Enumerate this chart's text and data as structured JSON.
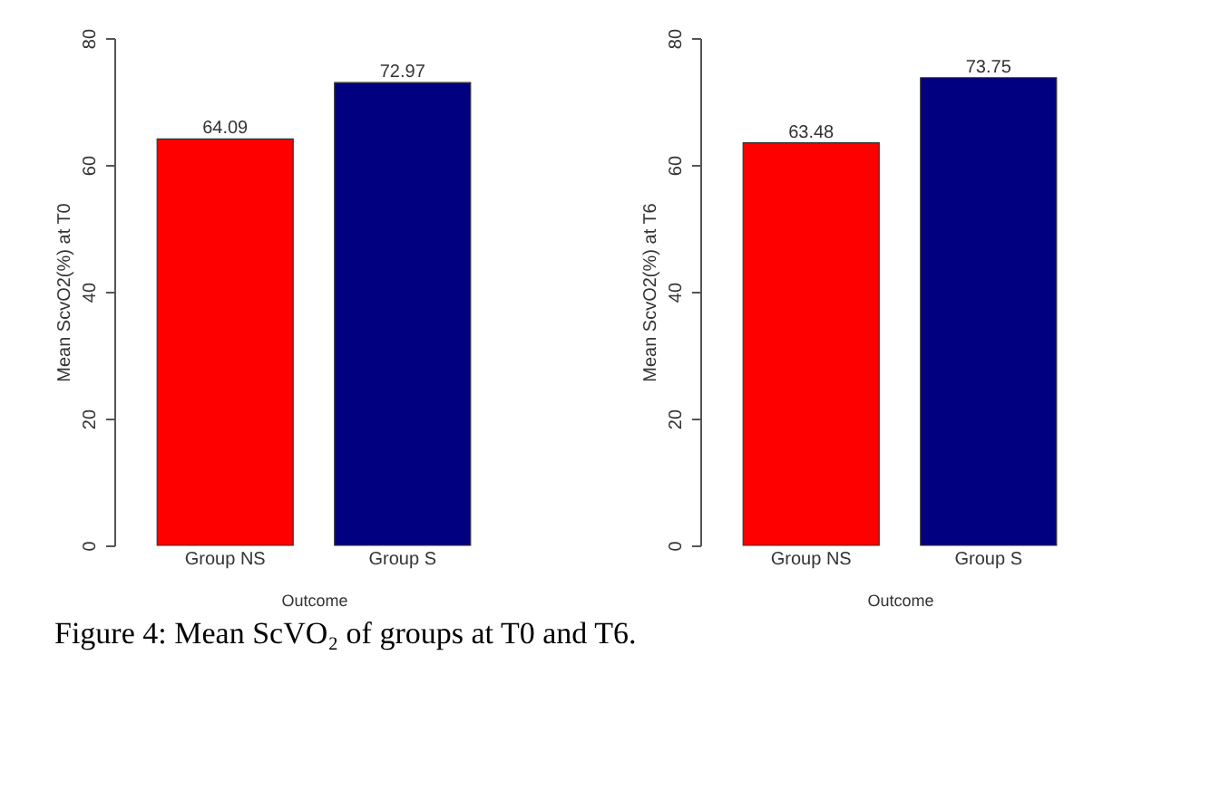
{
  "chart_data": [
    {
      "type": "bar",
      "categories": [
        "Group NS",
        "Group S"
      ],
      "values": [
        64.09,
        72.97
      ],
      "colors": [
        "#ff0000",
        "#000080"
      ],
      "xlabel": "Outcome",
      "ylabel": "Mean ScvO2(%) at T0",
      "ylim": [
        0,
        80
      ],
      "yticks": [
        0,
        20,
        40,
        60,
        80
      ],
      "data_labels": true,
      "grid": false,
      "annotations": [
        "Figure 4: Mean ScVO₂ of groups at T0 and T6."
      ]
    },
    {
      "type": "bar",
      "categories": [
        "Group NS",
        "Group S"
      ],
      "values": [
        63.48,
        73.75
      ],
      "colors": [
        "#ff0000",
        "#000080"
      ],
      "xlabel": "Outcome",
      "ylabel": "Mean ScvO2(%) at T6",
      "ylim": [
        0,
        80
      ],
      "yticks": [
        0,
        20,
        40,
        60,
        80
      ],
      "data_labels": true,
      "grid": false
    }
  ]
}
